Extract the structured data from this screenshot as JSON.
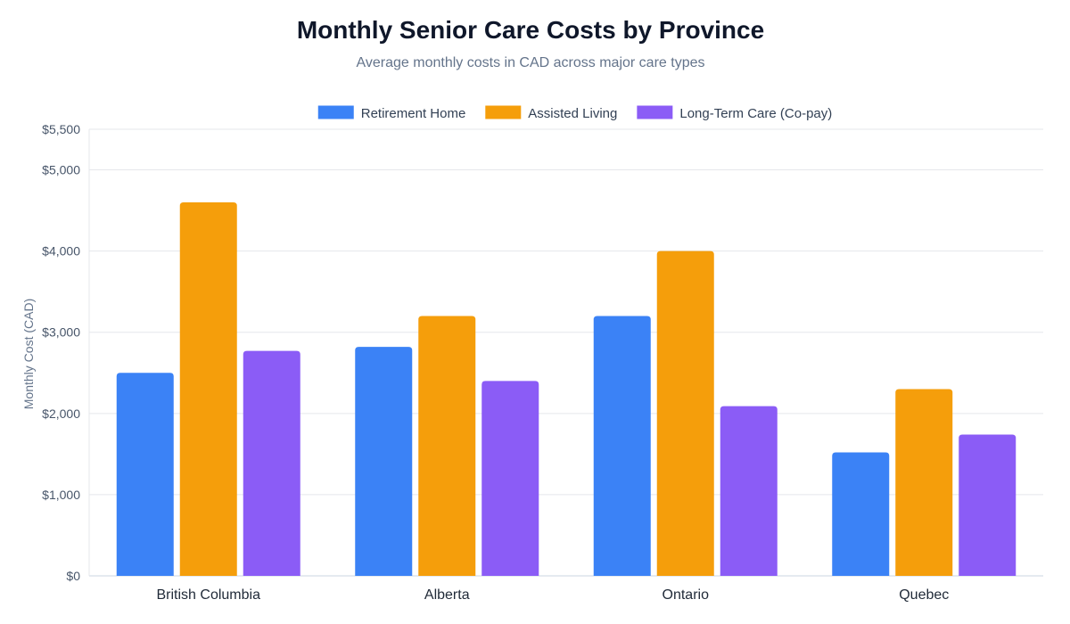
{
  "chart_data": {
    "type": "bar",
    "title": "Monthly Senior Care Costs by Province",
    "subtitle": "Average monthly costs in CAD across major care types",
    "ylabel": "Monthly Cost (CAD)",
    "xlabel": "",
    "ylim": [
      0,
      5500
    ],
    "yticks": [
      0,
      1000,
      2000,
      3000,
      4000,
      5000,
      5500
    ],
    "ytick_labels": [
      "$0",
      "$1,000",
      "$2,000",
      "$3,000",
      "$4,000",
      "$5,000",
      "$5,500"
    ],
    "grid": true,
    "legend_position": "top",
    "categories": [
      "British Columbia",
      "Alberta",
      "Ontario",
      "Quebec"
    ],
    "series": [
      {
        "name": "Retirement Home",
        "color": "#3b82f6",
        "values": [
          2500,
          2820,
          3200,
          1520
        ]
      },
      {
        "name": "Assisted Living",
        "color": "#f59e0b",
        "values": [
          4600,
          3200,
          4000,
          2300
        ]
      },
      {
        "name": "Long-Term Care (Co-pay)",
        "color": "#8b5cf6",
        "values": [
          2770,
          2400,
          2090,
          1740
        ]
      }
    ]
  }
}
